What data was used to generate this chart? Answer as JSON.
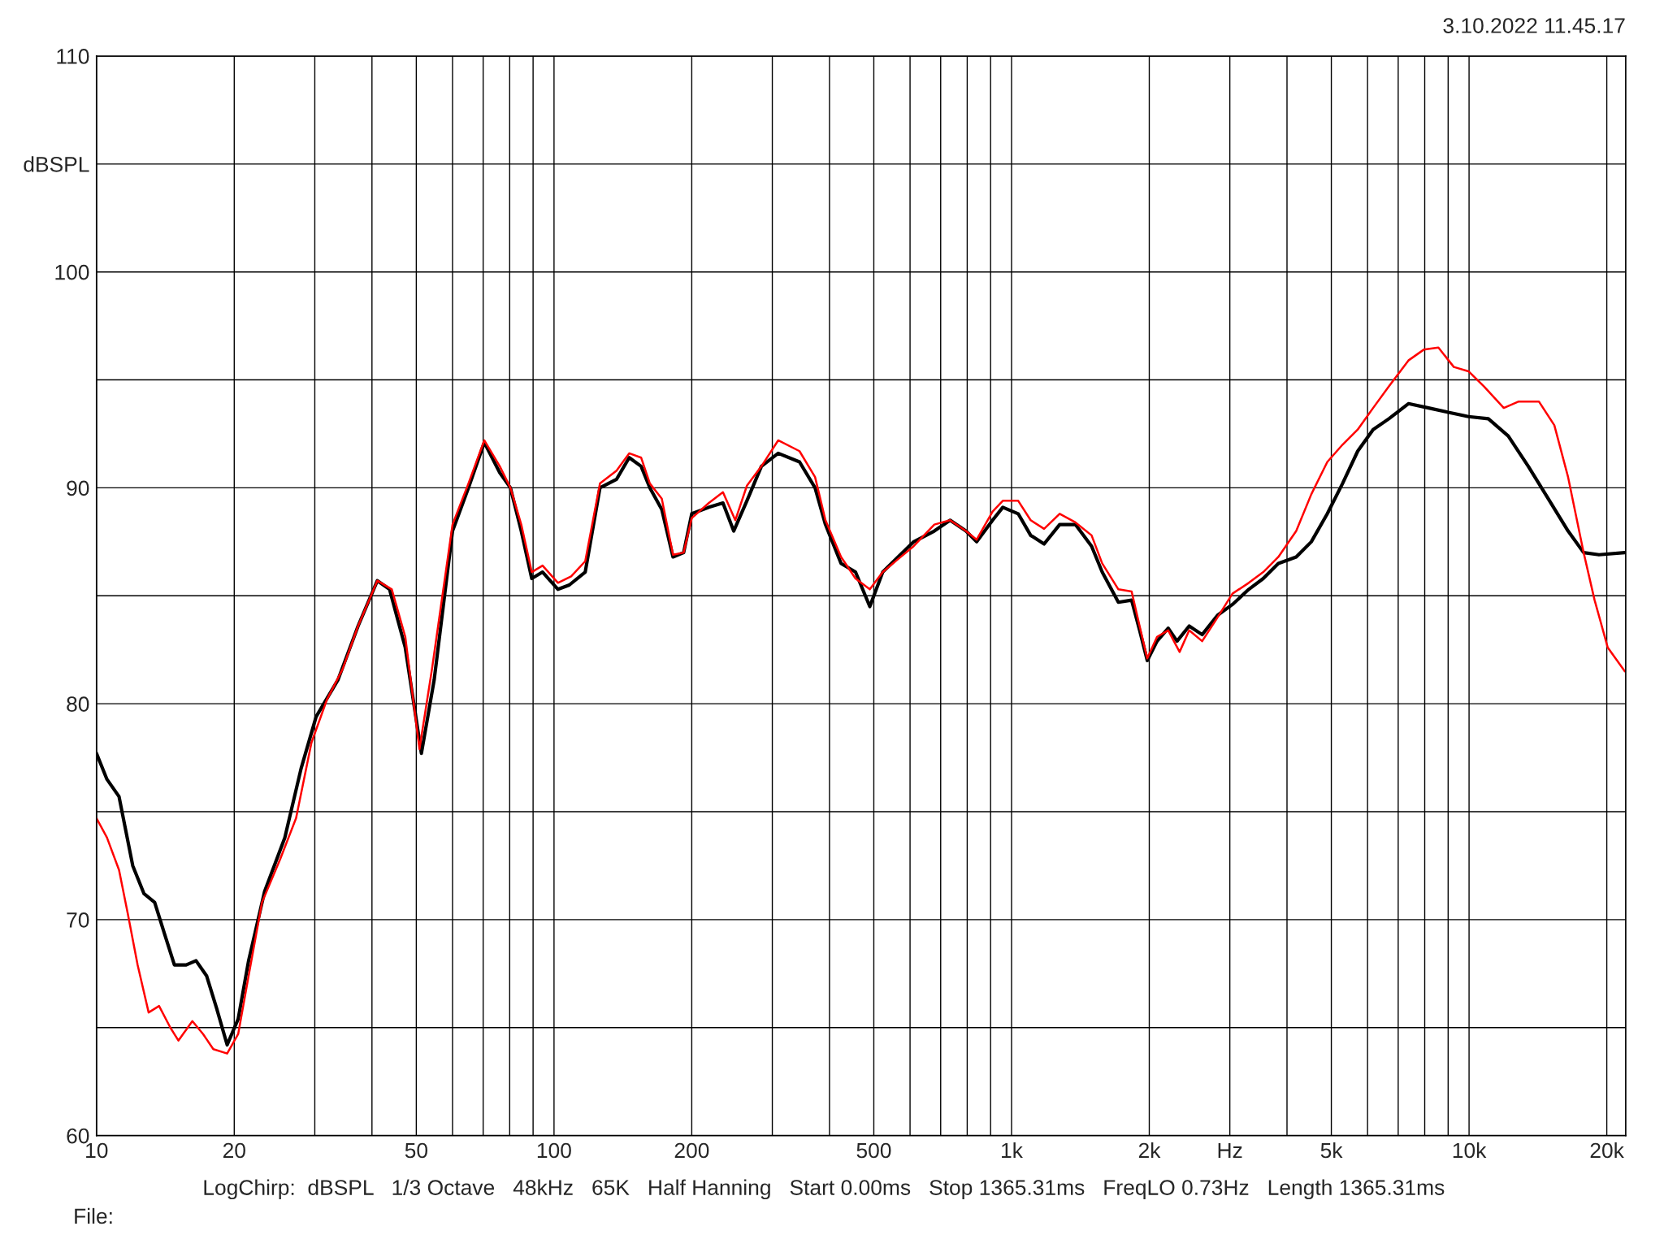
{
  "chart_data": {
    "type": "line",
    "annotations": [
      "3.10.2022 11.45.17",
      "LogChirp:  dBSPL   1/3 Octave   48kHz   65K   Half Hanning   Start 0.00ms   Stop 1365.31ms   FreqLO 0.73Hz   Length 1365.31ms",
      "File:"
    ],
    "log": "x",
    "grid": true,
    "legend": false,
    "marker": "none",
    "line_style": "solid",
    "xlim": [
      10,
      22000
    ],
    "ylim": [
      60,
      110
    ],
    "xticks": [
      10,
      20,
      {
        "value": 30,
        "label": null
      },
      {
        "value": 40,
        "label": null
      },
      50,
      {
        "value": 60,
        "label": null
      },
      {
        "value": 70,
        "label": null
      },
      {
        "value": 80,
        "label": null
      },
      {
        "value": 90,
        "label": null
      },
      100,
      200,
      {
        "value": 300,
        "label": null
      },
      {
        "value": 400,
        "label": null
      },
      500,
      {
        "value": 600,
        "label": null
      },
      {
        "value": 700,
        "label": null
      },
      {
        "value": 800,
        "label": null
      },
      {
        "value": 900,
        "label": null
      },
      {
        "value": 1000,
        "label": "1k"
      },
      {
        "value": 2000,
        "label": "2k"
      },
      {
        "value": 3000,
        "label": "Hz"
      },
      {
        "value": 4000,
        "label": null
      },
      {
        "value": 5000,
        "label": "5k"
      },
      {
        "value": 6000,
        "label": null
      },
      {
        "value": 7000,
        "label": null
      },
      {
        "value": 8000,
        "label": null
      },
      {
        "value": 9000,
        "label": null
      },
      {
        "value": 10000,
        "label": "10k"
      },
      {
        "value": 20000,
        "label": "20k"
      }
    ],
    "yticks": [
      60,
      {
        "value": 65,
        "label": null
      },
      70,
      {
        "value": 75,
        "label": null
      },
      80,
      {
        "value": 85,
        "label": null
      },
      90,
      {
        "value": 95,
        "label": null
      },
      100,
      {
        "value": 105,
        "label": "dBSPL"
      },
      110
    ],
    "series": [
      {
        "color": "#000000",
        "x": [
          10,
          10.54,
          11.2,
          12.0,
          12.7,
          13.4,
          14.1,
          14.8,
          15.7,
          16.5,
          17.4,
          18.3,
          19.3,
          20.4,
          21.5,
          23.3,
          25.8,
          28.0,
          30.2,
          33.7,
          37.3,
          41.1,
          43.7,
          47.3,
          51.3,
          54.7,
          60,
          65,
          70.4,
          76.1,
          80.3,
          84.8,
          89.4,
          94.4,
          102,
          108,
          117,
          126,
          137,
          146,
          155,
          162,
          172,
          182,
          192,
          200,
          218,
          234,
          247,
          264,
          284,
          309,
          344,
          372,
          392,
          424,
          456,
          490,
          523,
          565,
          611,
          678,
          734,
          795,
          839,
          909,
          957,
          1034,
          1101,
          1178,
          1274,
          1379,
          1496,
          1578,
          1712,
          1830,
          1905,
          1980,
          2080,
          2200,
          2300,
          2445,
          2610,
          2820,
          3040,
          3300,
          3550,
          3830,
          4190,
          4520,
          4900,
          5290,
          5710,
          6170,
          6680,
          7370,
          8160,
          9010,
          9970,
          11020,
          12180,
          13470,
          14890,
          16460,
          17800,
          19230,
          21900
        ],
        "values": [
          77.7,
          76.5,
          75.7,
          72.5,
          71.2,
          70.8,
          69.3,
          67.9,
          67.9,
          68.1,
          67.4,
          65.9,
          64.2,
          65.4,
          68.1,
          71.3,
          73.8,
          77.0,
          79.4,
          81.1,
          83.6,
          85.7,
          85.3,
          82.6,
          77.7,
          81.1,
          88.0,
          90.0,
          92.1,
          90.7,
          90.0,
          88.0,
          85.8,
          86.1,
          85.3,
          85.5,
          86.1,
          90.0,
          90.4,
          91.4,
          91.0,
          90.0,
          89.0,
          86.8,
          87.0,
          88.8,
          89.1,
          89.3,
          88.0,
          89.4,
          91.0,
          91.6,
          91.2,
          90.0,
          88.3,
          86.5,
          86.1,
          84.5,
          86.1,
          86.8,
          87.5,
          88.0,
          88.5,
          88.0,
          87.5,
          88.5,
          89.1,
          88.8,
          87.8,
          87.4,
          88.3,
          88.3,
          87.3,
          86.1,
          84.7,
          84.8,
          83.4,
          82.0,
          82.9,
          83.5,
          82.9,
          83.6,
          83.2,
          84.1,
          84.6,
          85.3,
          85.8,
          86.5,
          86.8,
          87.5,
          88.8,
          90.2,
          91.7,
          92.7,
          93.2,
          93.9,
          93.7,
          93.5,
          93.3,
          93.2,
          92.4,
          91.0,
          89.5,
          88.0,
          87.0,
          86.9,
          87.0
        ]
      },
      {
        "color": "#ff0000",
        "x": [
          10,
          10.54,
          11.2,
          11.7,
          12.3,
          13.0,
          13.7,
          14.5,
          15.1,
          15.7,
          16.2,
          17.1,
          18.0,
          19.3,
          20.4,
          21.5,
          23.0,
          25.2,
          27.3,
          29.5,
          31.9,
          34.5,
          37.3,
          41.1,
          44.2,
          47.3,
          50.8,
          54.1,
          60,
          65,
          70.4,
          76.1,
          80.3,
          84.8,
          89.4,
          94.4,
          102,
          109,
          117,
          126,
          137,
          146,
          155,
          162,
          172,
          182,
          192,
          200,
          218,
          234,
          249,
          264,
          284,
          309,
          344,
          372,
          392,
          424,
          456,
          490,
          523,
          565,
          611,
          678,
          734,
          795,
          839,
          909,
          957,
          1034,
          1101,
          1178,
          1274,
          1379,
          1496,
          1578,
          1712,
          1830,
          1905,
          1980,
          2080,
          2200,
          2330,
          2445,
          2610,
          2820,
          3040,
          3300,
          3550,
          3830,
          4190,
          4520,
          4900,
          5290,
          5710,
          6170,
          6680,
          7370,
          7960,
          8570,
          9260,
          9970,
          10780,
          11910,
          12840,
          14210,
          15360,
          16460,
          17800,
          18810,
          20100,
          21900
        ],
        "values": [
          74.7,
          73.8,
          72.3,
          70.3,
          67.9,
          65.7,
          66.0,
          65.0,
          64.4,
          64.9,
          65.3,
          64.7,
          64.0,
          63.8,
          64.7,
          67.4,
          70.8,
          72.8,
          74.7,
          78.2,
          80.2,
          81.6,
          83.6,
          85.7,
          85.3,
          83.1,
          77.9,
          81.6,
          88.3,
          90.2,
          92.2,
          91.0,
          90.0,
          88.3,
          86.1,
          86.4,
          85.6,
          85.9,
          86.6,
          90.2,
          90.8,
          91.6,
          91.4,
          90.2,
          89.5,
          86.9,
          87.0,
          88.6,
          89.3,
          89.8,
          88.5,
          90.1,
          91.0,
          92.2,
          91.7,
          90.5,
          88.5,
          86.8,
          85.8,
          85.3,
          86.1,
          86.7,
          87.3,
          88.3,
          88.5,
          88.0,
          87.6,
          88.9,
          89.4,
          89.4,
          88.5,
          88.1,
          88.8,
          88.4,
          87.8,
          86.5,
          85.3,
          85.2,
          83.6,
          82.1,
          83.1,
          83.4,
          82.4,
          83.4,
          82.9,
          84.0,
          85.1,
          85.6,
          86.1,
          86.8,
          88.0,
          89.7,
          91.2,
          92.0,
          92.7,
          93.7,
          94.7,
          95.9,
          96.4,
          96.5,
          95.6,
          95.4,
          94.7,
          93.7,
          94.0,
          94.0,
          92.9,
          90.5,
          87.0,
          84.8,
          82.6,
          81.5
        ]
      }
    ]
  }
}
